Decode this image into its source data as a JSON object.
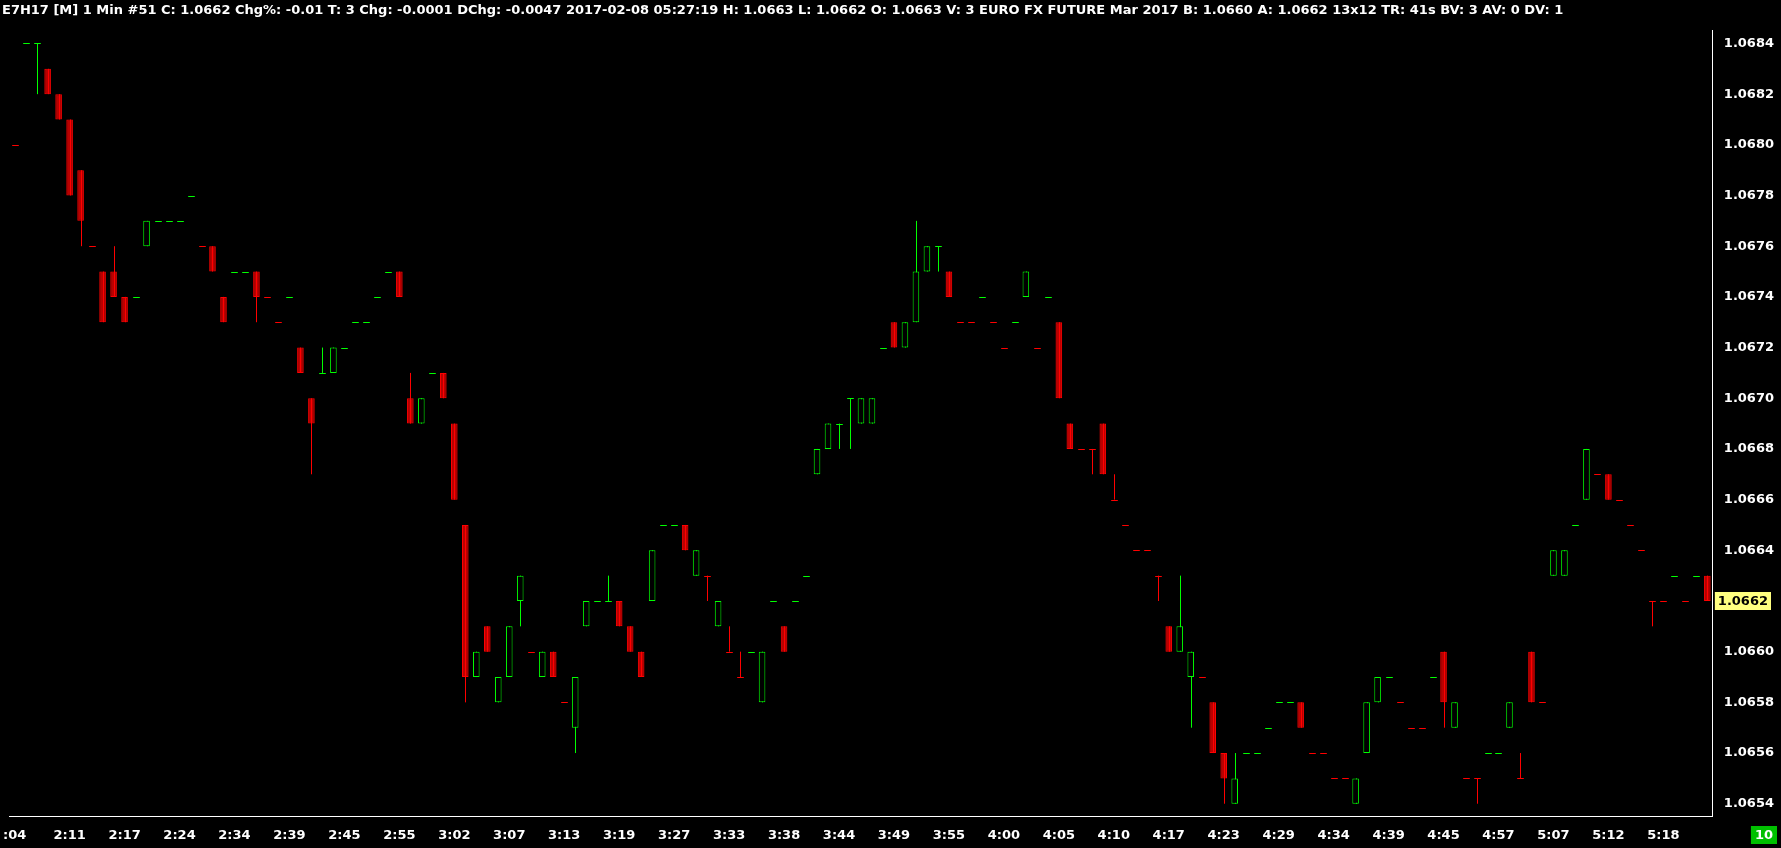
{
  "chart_data": {
    "type": "candlestick",
    "title": "E7H17 [M]  1 Min  #51 C: 1.0662 Chg%: -0.01 T: 3 Chg: -0.0001 DChg: -0.0047 2017-02-08 05:27:19 H: 1.0663 L: 1.0662 O: 1.0663 V: 3 EURO FX FUTURE Mar 2017 B: 1.0660 A: 1.0662 13x12 TR: 41s BV: 3 AV: 0 DV: 1",
    "categories": [
      ":04",
      null,
      null,
      null,
      null,
      "2:11",
      null,
      null,
      null,
      null,
      "2:17",
      null,
      null,
      null,
      null,
      "2:24",
      null,
      null,
      null,
      null,
      "2:34",
      null,
      null,
      null,
      null,
      "2:39",
      null,
      null,
      null,
      null,
      "2:45",
      null,
      null,
      null,
      null,
      "2:55",
      null,
      null,
      null,
      null,
      "3:02",
      null,
      null,
      null,
      null,
      "3:07",
      null,
      null,
      null,
      null,
      "3:13",
      null,
      null,
      null,
      null,
      "3:19",
      null,
      null,
      null,
      null,
      "3:27",
      null,
      null,
      null,
      null,
      "3:33",
      null,
      null,
      null,
      null,
      "3:38",
      null,
      null,
      null,
      null,
      "3:44",
      null,
      null,
      null,
      null,
      "3:49",
      null,
      null,
      null,
      null,
      "3:55",
      null,
      null,
      null,
      null,
      "4:00",
      null,
      null,
      null,
      null,
      "4:05",
      null,
      null,
      null,
      null,
      "4:10",
      null,
      null,
      null,
      null,
      "4:17",
      null,
      null,
      null,
      null,
      "4:23",
      null,
      null,
      null,
      null,
      "4:29",
      null,
      null,
      null,
      null,
      "4:34",
      null,
      null,
      null,
      null,
      "4:39",
      null,
      null,
      null,
      null,
      "4:45",
      null,
      null,
      null,
      null,
      "4:57",
      null,
      null,
      null,
      null,
      "5:07",
      null,
      null,
      null,
      null,
      "5:12",
      null,
      null,
      null,
      null,
      "5:18",
      null,
      null,
      null,
      null
    ],
    "ohlc": [
      [
        1.068,
        1.068,
        1.068,
        1.068
      ],
      [
        1.0684,
        1.0684,
        1.0684,
        1.0684
      ],
      [
        1.0684,
        1.0684,
        1.0682,
        1.0684
      ],
      [
        1.0683,
        1.0683,
        1.0682,
        1.0682
      ],
      [
        1.0682,
        1.0682,
        1.0681,
        1.0681
      ],
      [
        1.0681,
        1.0681,
        1.0678,
        1.0678
      ],
      [
        1.0679,
        1.0679,
        1.0676,
        1.0677
      ],
      [
        1.0676,
        1.0676,
        1.0676,
        1.0676
      ],
      [
        1.0675,
        1.0675,
        1.0673,
        1.0673
      ],
      [
        1.0675,
        1.0676,
        1.0674,
        1.0674
      ],
      [
        1.0674,
        1.0674,
        1.0673,
        1.0673
      ],
      [
        1.0674,
        1.0674,
        1.0674,
        1.0674
      ],
      [
        1.0676,
        1.0677,
        1.0676,
        1.0677
      ],
      [
        1.0677,
        1.0677,
        1.0677,
        1.0677
      ],
      [
        1.0677,
        1.0677,
        1.0677,
        1.0677
      ],
      [
        1.0677,
        1.0677,
        1.0677,
        1.0677
      ],
      [
        1.0678,
        1.0678,
        1.0678,
        1.0678
      ],
      [
        1.0676,
        1.0676,
        1.0676,
        1.0676
      ],
      [
        1.0676,
        1.0676,
        1.0675,
        1.0675
      ],
      [
        1.0674,
        1.0674,
        1.0673,
        1.0673
      ],
      [
        1.0675,
        1.0675,
        1.0675,
        1.0675
      ],
      [
        1.0675,
        1.0675,
        1.0675,
        1.0675
      ],
      [
        1.0675,
        1.0675,
        1.0673,
        1.0674
      ],
      [
        1.0674,
        1.0674,
        1.0674,
        1.0674
      ],
      [
        1.0673,
        1.0673,
        1.0673,
        1.0673
      ],
      [
        1.0674,
        1.0674,
        1.0674,
        1.0674
      ],
      [
        1.0672,
        1.0672,
        1.0671,
        1.0671
      ],
      [
        1.067,
        1.067,
        1.0667,
        1.0669
      ],
      [
        1.0671,
        1.0672,
        1.0671,
        1.0671
      ],
      [
        1.0671,
        1.0672,
        1.0671,
        1.0672
      ],
      [
        1.0672,
        1.0672,
        1.0672,
        1.0672
      ],
      [
        1.0673,
        1.0673,
        1.0673,
        1.0673
      ],
      [
        1.0673,
        1.0673,
        1.0673,
        1.0673
      ],
      [
        1.0674,
        1.0674,
        1.0674,
        1.0674
      ],
      [
        1.0675,
        1.0675,
        1.0675,
        1.0675
      ],
      [
        1.0675,
        1.0675,
        1.0674,
        1.0674
      ],
      [
        1.067,
        1.0671,
        1.0669,
        1.0669
      ],
      [
        1.0669,
        1.067,
        1.0669,
        1.067
      ],
      [
        1.0671,
        1.0671,
        1.0671,
        1.0671
      ],
      [
        1.0671,
        1.0671,
        1.067,
        1.067
      ],
      [
        1.0669,
        1.0669,
        1.0666,
        1.0666
      ],
      [
        1.0665,
        1.0665,
        1.0658,
        1.0659
      ],
      [
        1.0659,
        1.066,
        1.0659,
        1.066
      ],
      [
        1.0661,
        1.0661,
        1.066,
        1.066
      ],
      [
        1.0658,
        1.0659,
        1.0658,
        1.0659
      ],
      [
        1.0659,
        1.0661,
        1.0659,
        1.0661
      ],
      [
        1.0662,
        1.0663,
        1.0661,
        1.0663
      ],
      [
        1.066,
        1.066,
        1.066,
        1.066
      ],
      [
        1.0659,
        1.066,
        1.0659,
        1.066
      ],
      [
        1.066,
        1.066,
        1.0659,
        1.0659
      ],
      [
        1.0658,
        1.0658,
        1.0658,
        1.0658
      ],
      [
        1.0657,
        1.0659,
        1.0656,
        1.0659
      ],
      [
        1.0661,
        1.0662,
        1.0661,
        1.0662
      ],
      [
        1.0662,
        1.0662,
        1.0662,
        1.0662
      ],
      [
        1.0662,
        1.0663,
        1.0662,
        1.0662
      ],
      [
        1.0662,
        1.0662,
        1.0661,
        1.0661
      ],
      [
        1.0661,
        1.0661,
        1.066,
        1.066
      ],
      [
        1.066,
        1.066,
        1.0659,
        1.0659
      ],
      [
        1.0662,
        1.0664,
        1.0662,
        1.0664
      ],
      [
        1.0665,
        1.0665,
        1.0665,
        1.0665
      ],
      [
        1.0665,
        1.0665,
        1.0665,
        1.0665
      ],
      [
        1.0665,
        1.0665,
        1.0664,
        1.0664
      ],
      [
        1.0663,
        1.0664,
        1.0663,
        1.0664
      ],
      [
        1.0663,
        1.0663,
        1.0662,
        1.0663
      ],
      [
        1.0661,
        1.0662,
        1.0661,
        1.0662
      ],
      [
        1.066,
        1.0661,
        1.066,
        1.066
      ],
      [
        1.0659,
        1.066,
        1.0659,
        1.0659
      ],
      [
        1.066,
        1.066,
        1.066,
        1.066
      ],
      [
        1.0658,
        1.066,
        1.0658,
        1.066
      ],
      [
        1.0662,
        1.0662,
        1.0662,
        1.0662
      ],
      [
        1.0661,
        1.0661,
        1.066,
        1.066
      ],
      [
        1.0662,
        1.0662,
        1.0662,
        1.0662
      ],
      [
        1.0663,
        1.0663,
        1.0663,
        1.0663
      ],
      [
        1.0667,
        1.0668,
        1.0667,
        1.0668
      ],
      [
        1.0668,
        1.0669,
        1.0668,
        1.0669
      ],
      [
        1.0669,
        1.0669,
        1.0668,
        1.0669
      ],
      [
        1.067,
        1.067,
        1.0668,
        1.067
      ],
      [
        1.0669,
        1.067,
        1.0669,
        1.067
      ],
      [
        1.0669,
        1.067,
        1.0669,
        1.067
      ],
      [
        1.0672,
        1.0672,
        1.0672,
        1.0672
      ],
      [
        1.0673,
        1.0673,
        1.0672,
        1.0672
      ],
      [
        1.0672,
        1.0673,
        1.0672,
        1.0673
      ],
      [
        1.0673,
        1.0677,
        1.0673,
        1.0675
      ],
      [
        1.0675,
        1.0676,
        1.0675,
        1.0676
      ],
      [
        1.0676,
        1.0676,
        1.0675,
        1.0676
      ],
      [
        1.0675,
        1.0675,
        1.0674,
        1.0674
      ],
      [
        1.0673,
        1.0673,
        1.0673,
        1.0673
      ],
      [
        1.0673,
        1.0673,
        1.0673,
        1.0673
      ],
      [
        1.0674,
        1.0674,
        1.0674,
        1.0674
      ],
      [
        1.0673,
        1.0673,
        1.0673,
        1.0673
      ],
      [
        1.0672,
        1.0672,
        1.0672,
        1.0672
      ],
      [
        1.0673,
        1.0673,
        1.0673,
        1.0673
      ],
      [
        1.0674,
        1.0675,
        1.0674,
        1.0675
      ],
      [
        1.0672,
        1.0672,
        1.0672,
        1.0672
      ],
      [
        1.0674,
        1.0674,
        1.0674,
        1.0674
      ],
      [
        1.0673,
        1.0673,
        1.067,
        1.067
      ],
      [
        1.0669,
        1.0669,
        1.0668,
        1.0668
      ],
      [
        1.0668,
        1.0668,
        1.0668,
        1.0668
      ],
      [
        1.0668,
        1.0668,
        1.0667,
        1.0668
      ],
      [
        1.0669,
        1.0669,
        1.0667,
        1.0667
      ],
      [
        1.0666,
        1.0667,
        1.0666,
        1.0666
      ],
      [
        1.0665,
        1.0665,
        1.0665,
        1.0665
      ],
      [
        1.0664,
        1.0664,
        1.0664,
        1.0664
      ],
      [
        1.0664,
        1.0664,
        1.0664,
        1.0664
      ],
      [
        1.0663,
        1.0663,
        1.0662,
        1.0663
      ],
      [
        1.0661,
        1.0661,
        1.066,
        1.066
      ],
      [
        1.066,
        1.0663,
        1.066,
        1.0661
      ],
      [
        1.0659,
        1.066,
        1.0657,
        1.066
      ],
      [
        1.0659,
        1.0659,
        1.0659,
        1.0659
      ],
      [
        1.0658,
        1.0658,
        1.0656,
        1.0656
      ],
      [
        1.0656,
        1.0656,
        1.0654,
        1.0655
      ],
      [
        1.0654,
        1.0656,
        1.0654,
        1.0655
      ],
      [
        1.0656,
        1.0656,
        1.0656,
        1.0656
      ],
      [
        1.0656,
        1.0656,
        1.0656,
        1.0656
      ],
      [
        1.0657,
        1.0657,
        1.0657,
        1.0657
      ],
      [
        1.0658,
        1.0658,
        1.0658,
        1.0658
      ],
      [
        1.0658,
        1.0658,
        1.0658,
        1.0658
      ],
      [
        1.0658,
        1.0658,
        1.0657,
        1.0657
      ],
      [
        1.0656,
        1.0656,
        1.0656,
        1.0656
      ],
      [
        1.0656,
        1.0656,
        1.0656,
        1.0656
      ],
      [
        1.0655,
        1.0655,
        1.0655,
        1.0655
      ],
      [
        1.0655,
        1.0655,
        1.0655,
        1.0655
      ],
      [
        1.0654,
        1.0655,
        1.0654,
        1.0655
      ],
      [
        1.0656,
        1.0658,
        1.0656,
        1.0658
      ],
      [
        1.0658,
        1.0659,
        1.0658,
        1.0659
      ],
      [
        1.0659,
        1.0659,
        1.0659,
        1.0659
      ],
      [
        1.0658,
        1.0658,
        1.0658,
        1.0658
      ],
      [
        1.0657,
        1.0657,
        1.0657,
        1.0657
      ],
      [
        1.0657,
        1.0657,
        1.0657,
        1.0657
      ],
      [
        1.0659,
        1.0659,
        1.0659,
        1.0659
      ],
      [
        1.066,
        1.066,
        1.0657,
        1.0658
      ],
      [
        1.0657,
        1.0658,
        1.0657,
        1.0658
      ],
      [
        1.0655,
        1.0655,
        1.0655,
        1.0655
      ],
      [
        1.0655,
        1.0655,
        1.0654,
        1.0655
      ],
      [
        1.0656,
        1.0656,
        1.0656,
        1.0656
      ],
      [
        1.0656,
        1.0656,
        1.0656,
        1.0656
      ],
      [
        1.0657,
        1.0658,
        1.0657,
        1.0658
      ],
      [
        1.0655,
        1.0656,
        1.0655,
        1.0655
      ],
      [
        1.066,
        1.066,
        1.0658,
        1.0658
      ],
      [
        1.0658,
        1.0658,
        1.0658,
        1.0658
      ],
      [
        1.0663,
        1.0664,
        1.0663,
        1.0664
      ],
      [
        1.0663,
        1.0664,
        1.0663,
        1.0664
      ],
      [
        1.0665,
        1.0665,
        1.0665,
        1.0665
      ],
      [
        1.0666,
        1.0668,
        1.0666,
        1.0668
      ],
      [
        1.0667,
        1.0667,
        1.0667,
        1.0667
      ],
      [
        1.0667,
        1.0667,
        1.0666,
        1.0666
      ],
      [
        1.0666,
        1.0666,
        1.0666,
        1.0666
      ],
      [
        1.0665,
        1.0665,
        1.0665,
        1.0665
      ],
      [
        1.0664,
        1.0664,
        1.0664,
        1.0664
      ],
      [
        1.0662,
        1.0662,
        1.0661,
        1.0662
      ],
      [
        1.0662,
        1.0662,
        1.0662,
        1.0662
      ],
      [
        1.0663,
        1.0663,
        1.0663,
        1.0663
      ],
      [
        1.0662,
        1.0662,
        1.0662,
        1.0662
      ],
      [
        1.0663,
        1.0663,
        1.0663,
        1.0663
      ],
      [
        1.0663,
        1.0663,
        1.0662,
        1.0662
      ]
    ],
    "colors": [
      "#ff0000",
      "#00ff00",
      "#00ff00",
      "#ff0000",
      "#ff0000",
      "#ff0000",
      "#ff0000",
      "#ff0000",
      "#ff0000",
      "#ff0000",
      "#ff0000",
      "#00ff00",
      "#00ff00",
      "#00ff00",
      "#00ff00",
      "#00ff00",
      "#00ff00",
      "#ff0000",
      "#ff0000",
      "#ff0000",
      "#00ff00",
      "#00ff00",
      "#ff0000",
      "#ff0000",
      "#ff0000",
      "#00ff00",
      "#ff0000",
      "#ff0000",
      "#00ff00",
      "#00ff00",
      "#00ff00",
      "#00ff00",
      "#00ff00",
      "#00ff00",
      "#00ff00",
      "#ff0000",
      "#ff0000",
      "#00ff00",
      "#00ff00",
      "#ff0000",
      "#ff0000",
      "#ff0000",
      "#00ff00",
      "#ff0000",
      "#00ff00",
      "#00ff00",
      "#00ff00",
      "#ff0000",
      "#00ff00",
      "#ff0000",
      "#ff0000",
      "#00ff00",
      "#00ff00",
      "#00ff00",
      "#00ff00",
      "#ff0000",
      "#ff0000",
      "#ff0000",
      "#00ff00",
      "#00ff00",
      "#00ff00",
      "#ff0000",
      "#00ff00",
      "#ff0000",
      "#00ff00",
      "#ff0000",
      "#ff0000",
      "#00ff00",
      "#00ff00",
      "#00ff00",
      "#ff0000",
      "#00ff00",
      "#00ff00",
      "#00ff00",
      "#00ff00",
      "#00ff00",
      "#00ff00",
      "#00ff00",
      "#00ff00",
      "#00ff00",
      "#ff0000",
      "#00ff00",
      "#00ff00",
      "#00ff00",
      "#00ff00",
      "#ff0000",
      "#ff0000",
      "#ff0000",
      "#00ff00",
      "#ff0000",
      "#ff0000",
      "#00ff00",
      "#00ff00",
      "#ff0000",
      "#00ff00",
      "#ff0000",
      "#ff0000",
      "#ff0000",
      "#ff0000",
      "#ff0000",
      "#ff0000",
      "#ff0000",
      "#ff0000",
      "#ff0000",
      "#ff0000",
      "#ff0000",
      "#00ff00",
      "#00ff00",
      "#ff0000",
      "#ff0000",
      "#ff0000",
      "#00ff00",
      "#00ff00",
      "#00ff00",
      "#00ff00",
      "#00ff00",
      "#00ff00",
      "#ff0000",
      "#ff0000",
      "#ff0000",
      "#ff0000",
      "#ff0000",
      "#00ff00",
      "#00ff00",
      "#00ff00",
      "#00ff00",
      "#ff0000",
      "#ff0000",
      "#ff0000",
      "#00ff00",
      "#ff0000",
      "#00ff00",
      "#ff0000",
      "#ff0000",
      "#00ff00",
      "#00ff00",
      "#00ff00",
      "#ff0000",
      "#ff0000",
      "#ff0000",
      "#00ff00",
      "#00ff00",
      "#00ff00",
      "#00ff00",
      "#ff0000",
      "#ff0000",
      "#ff0000",
      "#ff0000",
      "#ff0000",
      "#ff0000",
      "#ff0000",
      "#00ff00",
      "#ff0000",
      "#00ff00",
      "#ff0000"
    ],
    "ylim": [
      1.06535,
      1.06845
    ],
    "yticks": [
      {
        "value": 1.0654,
        "label": "1.0654"
      },
      {
        "value": 1.0656,
        "label": "1.0656"
      },
      {
        "value": 1.0658,
        "label": "1.0658"
      },
      {
        "value": 1.066,
        "label": "1.0660"
      },
      {
        "value": 1.0664,
        "label": "1.0664"
      },
      {
        "value": 1.0666,
        "label": "1.0666"
      },
      {
        "value": 1.0668,
        "label": "1.0668"
      },
      {
        "value": 1.067,
        "label": "1.0670"
      },
      {
        "value": 1.0672,
        "label": "1.0672"
      },
      {
        "value": 1.0674,
        "label": "1.0674"
      },
      {
        "value": 1.0676,
        "label": "1.0676"
      },
      {
        "value": 1.0678,
        "label": "1.0678"
      },
      {
        "value": 1.068,
        "label": "1.0680"
      },
      {
        "value": 1.0682,
        "label": "1.0682"
      },
      {
        "value": 1.0684,
        "label": "1.0684"
      }
    ],
    "grid": false,
    "legend": false,
    "annotations": [
      "1.0662",
      "10"
    ]
  }
}
